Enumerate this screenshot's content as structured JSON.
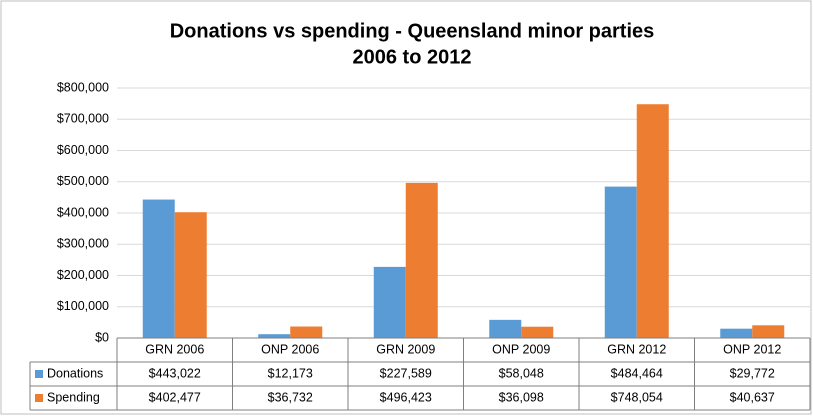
{
  "chart_data": {
    "type": "bar",
    "title": [
      "Donations vs spending - Queensland minor parties",
      "2006 to 2012"
    ],
    "categories": [
      "GRN 2006",
      "ONP 2006",
      "GRN 2009",
      "ONP 2009",
      "GRN 2012",
      "ONP 2012"
    ],
    "series": [
      {
        "name": "Donations",
        "color": "#5b9bd5",
        "values": [
          443022,
          12173,
          227589,
          58048,
          484464,
          29772
        ],
        "value_labels": [
          "$443,022",
          "$12,173",
          "$227,589",
          "$58,048",
          "$484,464",
          "$29,772"
        ]
      },
      {
        "name": "Spending",
        "color": "#ed7d31",
        "values": [
          402477,
          36732,
          496423,
          36098,
          748054,
          40637
        ],
        "value_labels": [
          "$402,477",
          "$36,732",
          "$496,423",
          "$36,098",
          "$748,054",
          "$40,637"
        ]
      }
    ],
    "ylim": [
      0,
      800000
    ],
    "yticks": [
      {
        "value": 0,
        "label": "$0"
      },
      {
        "value": 100000,
        "label": "$100,000"
      },
      {
        "value": 200000,
        "label": "$200,000"
      },
      {
        "value": 300000,
        "label": "$300,000"
      },
      {
        "value": 400000,
        "label": "$400,000"
      },
      {
        "value": 500000,
        "label": "$500,000"
      },
      {
        "value": 600000,
        "label": "$600,000"
      },
      {
        "value": 700000,
        "label": "$700,000"
      },
      {
        "value": 800000,
        "label": "$800,000"
      }
    ],
    "grid": true
  }
}
